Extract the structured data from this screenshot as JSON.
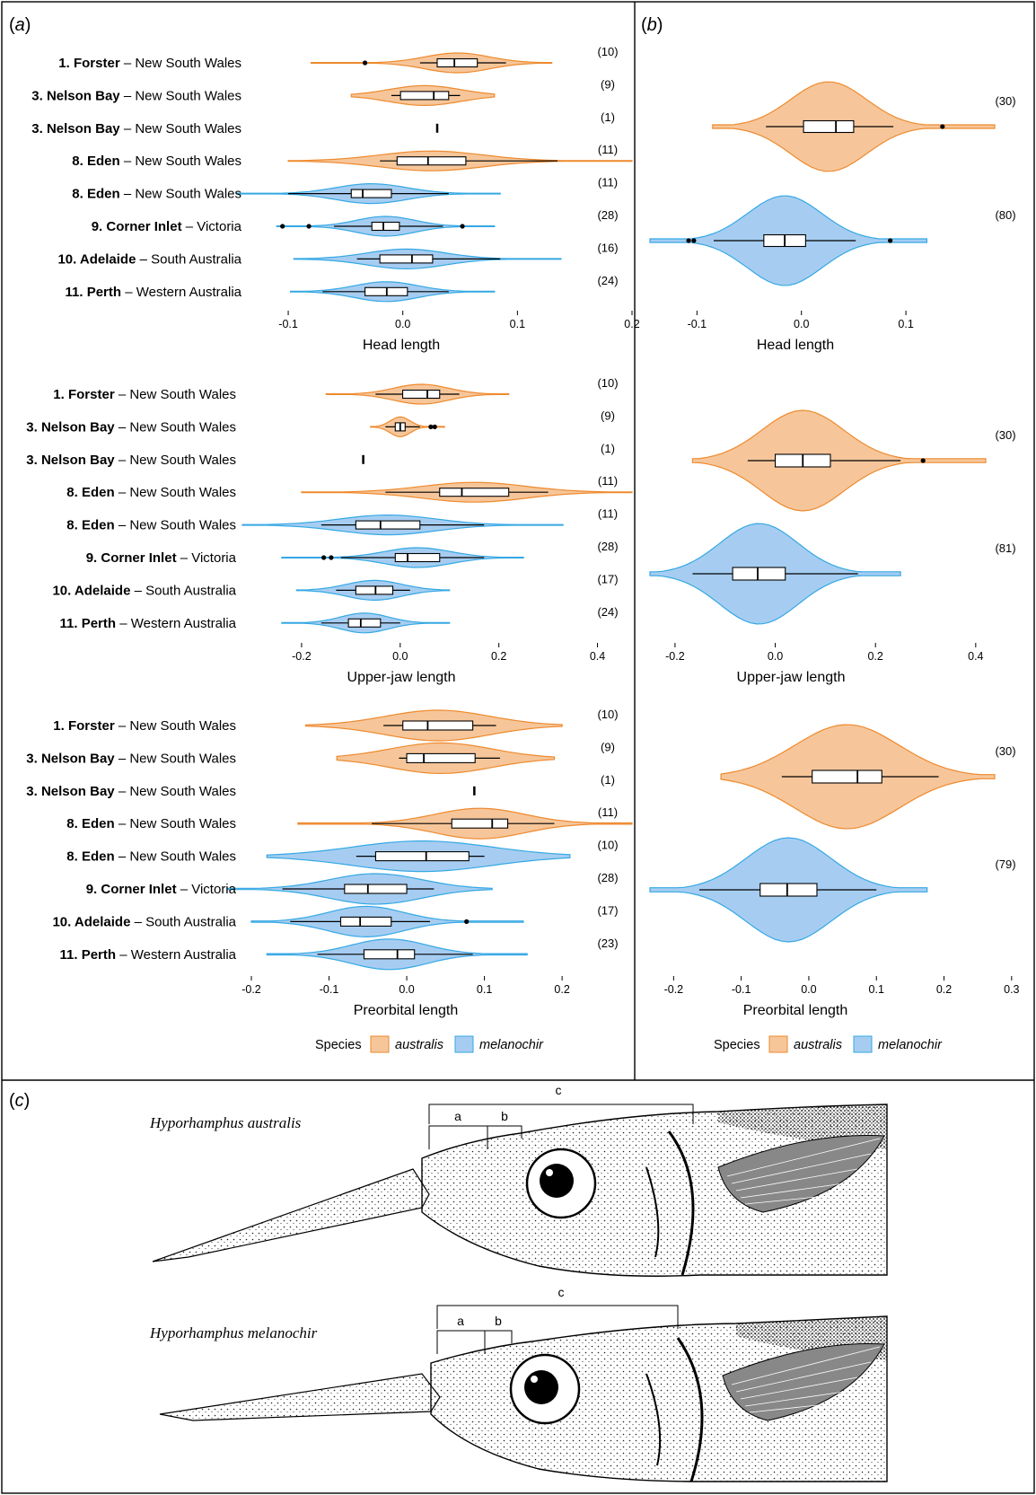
{
  "colors": {
    "australis": "#f6c69a",
    "australis_edge": "#ee8a2e",
    "melanochir": "#a6cdf1",
    "melanochir_edge": "#34a8e4"
  },
  "panels": {
    "a": "(",
    "a_letter": "a",
    "b_letter": "b",
    "c_letter": "c",
    "close": ")"
  },
  "legend": {
    "title": "Species",
    "items": [
      "australis",
      "melanochir"
    ]
  },
  "illustration": {
    "species": [
      "Hyporhamphus australis",
      "Hyporhamphus melanochir"
    ],
    "measure_labels": [
      "a",
      "b",
      "c"
    ]
  },
  "chart_data": [
    {
      "type": "violin",
      "panel": "a",
      "xlabel": "Head length",
      "xlim": [
        -0.14,
        0.2
      ],
      "ticks": [
        "-0.1",
        "0.0",
        "0.1",
        "0.2"
      ],
      "tick_values": [
        -0.1,
        0.0,
        0.1,
        0.2
      ],
      "groups": [
        {
          "num": "1.",
          "site": "Forster",
          "state": "New South Wales",
          "species": "australis",
          "n": "(10)",
          "min": -0.08,
          "max": 0.13,
          "q1": 0.03,
          "med": 0.045,
          "q3": 0.065,
          "wlo": 0.015,
          "whi": 0.09,
          "out": [
            -0.033
          ]
        },
        {
          "num": "3.",
          "site": "Nelson Bay",
          "state": "New South Wales",
          "species": "australis",
          "n": "(9)",
          "min": -0.045,
          "max": 0.08,
          "q1": -0.002,
          "med": 0.027,
          "q3": 0.04,
          "wlo": -0.01,
          "whi": 0.05,
          "out": []
        },
        {
          "num": "3.",
          "site": "Nelson Bay",
          "state": "New South Wales",
          "species": "australis",
          "n": "(1)",
          "min": 0.03,
          "max": 0.03,
          "q1": 0.03,
          "med": 0.03,
          "q3": 0.03,
          "wlo": 0.03,
          "whi": 0.03,
          "out": []
        },
        {
          "num": "8.",
          "site": "Eden",
          "state": "New South Wales",
          "species": "australis",
          "n": "(11)",
          "min": -0.1,
          "max": 0.2,
          "q1": -0.005,
          "med": 0.022,
          "q3": 0.055,
          "wlo": -0.02,
          "whi": 0.135,
          "out": []
        },
        {
          "num": "8.",
          "site": "Eden",
          "state": "New South Wales",
          "species": "melanochir",
          "n": "(11)",
          "min": -0.145,
          "max": 0.085,
          "q1": -0.045,
          "med": -0.035,
          "q3": -0.01,
          "wlo": -0.1,
          "whi": 0.04,
          "out": []
        },
        {
          "num": "9.",
          "site": "Corner Inlet",
          "state": "Victoria",
          "species": "melanochir",
          "n": "(28)",
          "min": -0.11,
          "max": 0.08,
          "q1": -0.027,
          "med": -0.017,
          "q3": -0.003,
          "wlo": -0.06,
          "whi": 0.035,
          "out": [
            -0.105,
            -0.082,
            0.052
          ]
        },
        {
          "num": "10.",
          "site": "Adelaide",
          "state": "South Australia",
          "species": "melanochir",
          "n": "(16)",
          "min": -0.095,
          "max": 0.138,
          "q1": -0.02,
          "med": 0.008,
          "q3": 0.026,
          "wlo": -0.04,
          "whi": 0.085,
          "out": []
        },
        {
          "num": "11.",
          "site": "Perth",
          "state": "Western Australia",
          "species": "melanochir",
          "n": "(24)",
          "min": -0.098,
          "max": 0.08,
          "q1": -0.033,
          "med": -0.014,
          "q3": 0.004,
          "wlo": -0.07,
          "whi": 0.04,
          "out": []
        }
      ]
    },
    {
      "type": "violin",
      "panel": "a",
      "xlabel": "Upper-jaw length",
      "xlim": [
        -0.32,
        0.47
      ],
      "ticks": [
        "-0.2",
        "0.0",
        "0.2",
        "0.4"
      ],
      "tick_values": [
        -0.2,
        0.0,
        0.2,
        0.4
      ],
      "groups": [
        {
          "num": "1.",
          "site": "Forster",
          "state": "New South Wales",
          "species": "australis",
          "n": "(10)",
          "min": -0.15,
          "max": 0.22,
          "q1": 0.005,
          "med": 0.055,
          "q3": 0.08,
          "wlo": -0.05,
          "whi": 0.12,
          "out": []
        },
        {
          "num": "3.",
          "site": "Nelson Bay",
          "state": "New South Wales",
          "species": "australis",
          "n": "(9)",
          "min": -0.06,
          "max": 0.09,
          "q1": -0.01,
          "med": 0.0,
          "q3": 0.01,
          "wlo": -0.03,
          "whi": 0.04,
          "out": [
            0.062,
            0.07
          ]
        },
        {
          "num": "3.",
          "site": "Nelson Bay",
          "state": "New South Wales",
          "species": "australis",
          "n": "(1)",
          "min": -0.075,
          "max": -0.075,
          "q1": -0.075,
          "med": -0.075,
          "q3": -0.075,
          "wlo": -0.075,
          "whi": -0.075,
          "out": []
        },
        {
          "num": "8.",
          "site": "Eden",
          "state": "New South Wales",
          "species": "australis",
          "n": "(11)",
          "min": -0.2,
          "max": 0.47,
          "q1": 0.08,
          "med": 0.125,
          "q3": 0.22,
          "wlo": -0.03,
          "whi": 0.3,
          "out": []
        },
        {
          "num": "8.",
          "site": "Eden",
          "state": "New South Wales",
          "species": "melanochir",
          "n": "(11)",
          "min": -0.32,
          "max": 0.33,
          "q1": -0.09,
          "med": -0.04,
          "q3": 0.04,
          "wlo": -0.16,
          "whi": 0.17,
          "out": []
        },
        {
          "num": "9.",
          "site": "Corner Inlet",
          "state": "Victoria",
          "species": "melanochir",
          "n": "(28)",
          "min": -0.24,
          "max": 0.25,
          "q1": -0.01,
          "med": 0.015,
          "q3": 0.08,
          "wlo": -0.12,
          "whi": 0.17,
          "out": [
            -0.155,
            -0.14
          ]
        },
        {
          "num": "10.",
          "site": "Adelaide",
          "state": "South Australia",
          "species": "melanochir",
          "n": "(17)",
          "min": -0.21,
          "max": 0.1,
          "q1": -0.09,
          "med": -0.05,
          "q3": -0.015,
          "wlo": -0.13,
          "whi": 0.02,
          "out": []
        },
        {
          "num": "11.",
          "site": "Perth",
          "state": "Western Australia",
          "species": "melanochir",
          "n": "(24)",
          "min": -0.24,
          "max": 0.1,
          "q1": -0.105,
          "med": -0.08,
          "q3": -0.04,
          "wlo": -0.16,
          "whi": 0.0,
          "out": []
        }
      ]
    },
    {
      "type": "violin",
      "panel": "a",
      "xlabel": "Preorbital length",
      "xlim": [
        -0.2,
        0.29
      ],
      "ticks": [
        "-0.2",
        "-0.1",
        "0.0",
        "0.1",
        "0.2"
      ],
      "tick_values": [
        -0.2,
        -0.1,
        0.0,
        0.1,
        0.2
      ],
      "groups": [
        {
          "num": "1.",
          "site": "Forster",
          "state": "New South Wales",
          "species": "australis",
          "n": "(10)",
          "min": -0.13,
          "max": 0.2,
          "q1": -0.005,
          "med": 0.027,
          "q3": 0.085,
          "wlo": -0.03,
          "whi": 0.115,
          "out": []
        },
        {
          "num": "3.",
          "site": "Nelson Bay",
          "state": "New South Wales",
          "species": "australis",
          "n": "(9)",
          "min": -0.09,
          "max": 0.19,
          "q1": 0.0,
          "med": 0.022,
          "q3": 0.088,
          "wlo": -0.01,
          "whi": 0.12,
          "out": []
        },
        {
          "num": "3.",
          "site": "Nelson Bay",
          "state": "New South Wales",
          "species": "australis",
          "n": "(1)",
          "min": 0.087,
          "max": 0.087,
          "q1": 0.087,
          "med": 0.087,
          "q3": 0.087,
          "wlo": 0.087,
          "whi": 0.087,
          "out": []
        },
        {
          "num": "8.",
          "site": "Eden",
          "state": "New South Wales",
          "species": "australis",
          "n": "(11)",
          "min": -0.14,
          "max": 0.29,
          "q1": 0.058,
          "med": 0.11,
          "q3": 0.13,
          "wlo": -0.045,
          "whi": 0.19,
          "out": []
        },
        {
          "num": "8.",
          "site": "Eden",
          "state": "New South Wales",
          "species": "melanochir",
          "n": "(10)",
          "min": -0.18,
          "max": 0.21,
          "q1": -0.04,
          "med": 0.025,
          "q3": 0.08,
          "wlo": -0.065,
          "whi": 0.1,
          "out": []
        },
        {
          "num": "9.",
          "site": "Corner Inlet",
          "state": "Victoria",
          "species": "melanochir",
          "n": "(28)",
          "min": -0.23,
          "max": 0.11,
          "q1": -0.08,
          "med": -0.05,
          "q3": 0.0,
          "wlo": -0.16,
          "whi": 0.035,
          "out": []
        },
        {
          "num": "10.",
          "site": "Adelaide",
          "state": "South Australia",
          "species": "melanochir",
          "n": "(17)",
          "min": -0.2,
          "max": 0.15,
          "q1": -0.085,
          "med": -0.06,
          "q3": -0.02,
          "wlo": -0.15,
          "whi": 0.03,
          "out": [
            0.077
          ]
        },
        {
          "num": "11.",
          "site": "Perth",
          "state": "Western Australia",
          "species": "melanochir",
          "n": "(23)",
          "min": -0.18,
          "max": 0.155,
          "q1": -0.055,
          "med": -0.012,
          "q3": 0.01,
          "wlo": -0.115,
          "whi": 0.085,
          "out": []
        }
      ]
    },
    {
      "type": "violin",
      "panel": "b",
      "xlabel": "Head length",
      "xlim": [
        -0.145,
        0.185
      ],
      "ticks": [
        "-0.1",
        "0.0",
        "0.1"
      ],
      "tick_values": [
        -0.1,
        0.0,
        0.1
      ],
      "groups": [
        {
          "species": "australis",
          "n": "(30)",
          "min": -0.085,
          "max": 0.185,
          "q1": 0.002,
          "med": 0.033,
          "q3": 0.05,
          "wlo": -0.034,
          "whi": 0.088,
          "out": [
            0.135
          ]
        },
        {
          "species": "melanochir",
          "n": "(80)",
          "min": -0.145,
          "max": 0.12,
          "q1": -0.036,
          "med": -0.016,
          "q3": 0.004,
          "wlo": -0.084,
          "whi": 0.052,
          "out": [
            -0.108,
            -0.103,
            0.085
          ]
        }
      ]
    },
    {
      "type": "violin",
      "panel": "b",
      "xlabel": "Upper-jaw length",
      "xlim": [
        -0.25,
        0.42
      ],
      "ticks": [
        "-0.2",
        "0.0",
        "0.2",
        "0.4"
      ],
      "tick_values": [
        -0.2,
        0.0,
        0.2,
        0.4
      ],
      "groups": [
        {
          "species": "australis",
          "n": "(30)",
          "min": -0.165,
          "max": 0.42,
          "q1": 0.0,
          "med": 0.055,
          "q3": 0.11,
          "wlo": -0.055,
          "whi": 0.25,
          "out": [
            0.295
          ]
        },
        {
          "species": "melanochir",
          "n": "(81)",
          "min": -0.25,
          "max": 0.25,
          "q1": -0.085,
          "med": -0.035,
          "q3": 0.02,
          "wlo": -0.165,
          "whi": 0.165,
          "out": []
        }
      ]
    },
    {
      "type": "violin",
      "panel": "b",
      "xlabel": "Preorbital length",
      "xlim": [
        -0.235,
        0.275
      ],
      "ticks": [
        "-0.2",
        "-0.1",
        "0.0",
        "0.1",
        "0.2",
        "0.3"
      ],
      "tick_values": [
        -0.2,
        -0.1,
        0.0,
        0.1,
        0.2,
        0.3
      ],
      "groups": [
        {
          "species": "australis",
          "n": "(30)",
          "min": -0.13,
          "max": 0.275,
          "q1": 0.005,
          "med": 0.072,
          "q3": 0.108,
          "wlo": -0.04,
          "whi": 0.192,
          "out": []
        },
        {
          "species": "melanochir",
          "n": "(79)",
          "min": -0.235,
          "max": 0.175,
          "q1": -0.072,
          "med": -0.032,
          "q3": 0.012,
          "wlo": -0.162,
          "whi": 0.1,
          "out": []
        }
      ]
    }
  ]
}
